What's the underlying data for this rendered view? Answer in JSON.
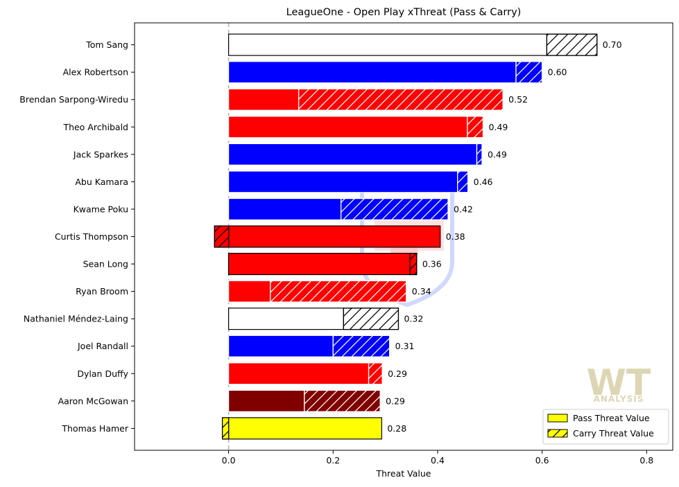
{
  "chart_data": {
    "type": "bar",
    "orientation": "horizontal",
    "stacked": true,
    "title": "LeagueOne - Open Play xThreat (Pass & Carry)",
    "xlabel": "Threat Value",
    "ylabel": "",
    "xlim": [
      -0.18,
      0.85
    ],
    "xticks": [
      0.0,
      0.2,
      0.4,
      0.6,
      0.8
    ],
    "xtick_labels": [
      "0.0",
      "0.2",
      "0.4",
      "0.6",
      "0.8"
    ],
    "grid": false,
    "reference_line_x": 0,
    "legend_position": "bottom-right",
    "categories": [
      "Tom Sang",
      "Alex Robertson",
      "Brendan Sarpong-Wiredu",
      "Theo Archibald",
      "Jack Sparkes",
      "Abu Kamara",
      "Kwame Poku",
      "Curtis Thompson",
      "Sean Long",
      "Ryan Broom",
      "Nathaniel Méndez-Laing",
      "Joel Randall",
      "Dylan Duffy",
      "Aaron McGowan",
      "Thomas Hamer"
    ],
    "series": [
      {
        "name": "Pass Threat Value",
        "hatch": false,
        "values": [
          0.609,
          0.55,
          0.134,
          0.457,
          0.475,
          0.438,
          0.215,
          0.405,
          0.347,
          0.08,
          0.22,
          0.2,
          0.268,
          0.145,
          0.293
        ]
      },
      {
        "name": "Carry Threat Value",
        "hatch": true,
        "values": [
          0.096,
          0.05,
          0.391,
          0.03,
          0.01,
          0.02,
          0.205,
          -0.027,
          0.013,
          0.26,
          0.105,
          0.108,
          0.026,
          0.145,
          -0.012
        ]
      }
    ],
    "bar_fill_colors": [
      "#ffffff",
      "#0000ff",
      "#ff0000",
      "#ff0000",
      "#0000ff",
      "#0000ff",
      "#0000ff",
      "#ff0000",
      "#ff0000",
      "#ff0000",
      "#ffffff",
      "#0000ff",
      "#ff0000",
      "#800000",
      "#ffff00"
    ],
    "bar_edge_colors": [
      "#000000",
      "#ffffff",
      "#ffffff",
      "#ffffff",
      "#ffffff",
      "#ffffff",
      "#ffffff",
      "#000000",
      "#000000",
      "#ffffff",
      "#000000",
      "#ffffff",
      "#ffffff",
      "#ffffff",
      "#000000"
    ],
    "total_labels": [
      "0.70",
      "0.60",
      "0.52",
      "0.49",
      "0.49",
      "0.46",
      "0.42",
      "0.38",
      "0.36",
      "0.34",
      "0.32",
      "0.31",
      "0.29",
      "0.29",
      "0.28"
    ],
    "legend": {
      "pass_color": "#ffff00",
      "carry_color": "#ffff00"
    },
    "watermark": {
      "text": "WT",
      "subtext": "ANALYSIS",
      "color": "#d8d0a8"
    }
  }
}
